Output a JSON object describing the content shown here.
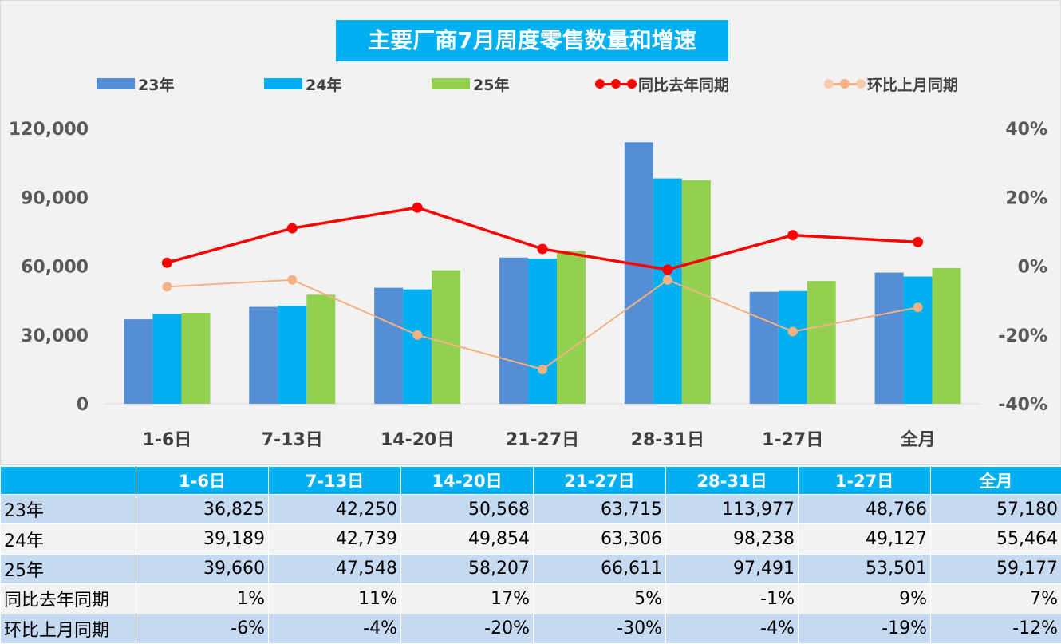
{
  "chart_data": {
    "type": "bar",
    "title": "主要厂商7月周度零售数量和增速",
    "categories": [
      "1-6日",
      "7-13日",
      "14-20日",
      "21-27日",
      "28-31日",
      "1-27日",
      "全月"
    ],
    "series": [
      {
        "name": "23年",
        "type": "bar",
        "axis": "left",
        "color": "#558ed5",
        "values": [
          36825,
          42250,
          50568,
          63715,
          113977,
          48766,
          57180
        ]
      },
      {
        "name": "24年",
        "type": "bar",
        "axis": "left",
        "color": "#00b0f0",
        "values": [
          39189,
          42739,
          49854,
          63306,
          98238,
          49127,
          55464
        ]
      },
      {
        "name": "25年",
        "type": "bar",
        "axis": "left",
        "color": "#92d050",
        "values": [
          39660,
          47548,
          58207,
          66611,
          97491,
          53501,
          59177
        ]
      },
      {
        "name": "同比去年同期",
        "type": "line",
        "axis": "right",
        "color": "#ff0000",
        "values": [
          1,
          11,
          17,
          5,
          -1,
          9,
          7
        ]
      },
      {
        "name": "环比上月同期",
        "type": "line",
        "axis": "right",
        "color": "#f4b183",
        "values": [
          -6,
          -4,
          -20,
          -30,
          -4,
          -19,
          -12
        ]
      }
    ],
    "y_left": {
      "ticks": [
        "0",
        "30,000",
        "60,000",
        "90,000",
        "120,000"
      ],
      "range": [
        0,
        120000
      ]
    },
    "y_right": {
      "ticks": [
        "-40%",
        "-20%",
        "0%",
        "20%",
        "40%"
      ],
      "range": [
        -40,
        40
      ]
    },
    "legend_position": "top",
    "grid": false
  },
  "table": {
    "header": [
      "",
      "1-6日",
      "7-13日",
      "14-20日",
      "21-27日",
      "28-31日",
      "1-27日",
      "全月"
    ],
    "rows": [
      {
        "label": "23年",
        "cells": [
          "36,825",
          "42,250",
          "50,568",
          "63,715",
          "113,977",
          "48,766",
          "57,180"
        ]
      },
      {
        "label": "24年",
        "cells": [
          "39,189",
          "42,739",
          "49,854",
          "63,306",
          "98,238",
          "49,127",
          "55,464"
        ]
      },
      {
        "label": "25年",
        "cells": [
          "39,660",
          "47,548",
          "58,207",
          "66,611",
          "97,491",
          "53,501",
          "59,177"
        ]
      },
      {
        "label": "同比去年同期",
        "cells": [
          "1%",
          "11%",
          "17%",
          "5%",
          "-1%",
          "9%",
          "7%"
        ]
      },
      {
        "label": "环比上月同期",
        "cells": [
          "-6%",
          "-4%",
          "-20%",
          "-30%",
          "-4%",
          "-19%",
          "-12%"
        ]
      }
    ]
  }
}
